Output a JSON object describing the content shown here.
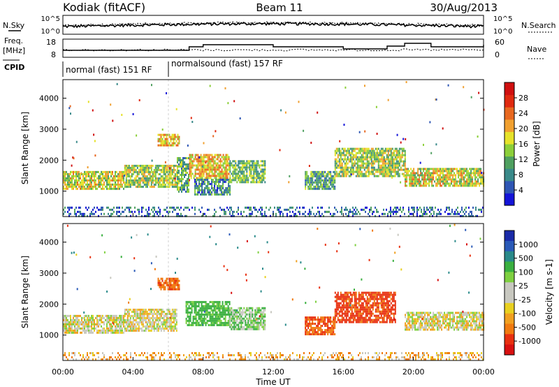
{
  "header": {
    "station": "Kodiak (fitACF)",
    "beam": "Beam 11",
    "date": "30/Aug/2013"
  },
  "status_panels": {
    "nsky_label": "N.Sky",
    "nsearch_label": "N.Search",
    "freq_label_1": "Freq.",
    "freq_label_2": "[MHz]",
    "nave_label": "Nave",
    "cpid_label": "CPID",
    "nsky_ticks": [
      "10^5",
      "10^0"
    ],
    "nsearch_ticks": [
      "10^5",
      "10^0"
    ],
    "freq_ticks": [
      "18",
      "8"
    ],
    "nave_ticks": [
      "60",
      "0"
    ],
    "cpid_segments": [
      {
        "label": "normal (fast) 151 RF",
        "start_hour": 0,
        "end_hour": 6.0
      },
      {
        "label": "normalsound (fast) 157 RF",
        "start_hour": 6.0,
        "end_hour": 24
      }
    ]
  },
  "axes": {
    "xlabel": "Time UT",
    "ylabel": "Slant Range [km]",
    "xticks": [
      "00:00",
      "04:00",
      "08:00",
      "12:00",
      "16:00",
      "20:00",
      "00:00"
    ],
    "yticks": [
      "1000",
      "2000",
      "3000",
      "4000"
    ]
  },
  "colorbars": {
    "power": {
      "label": "Power [dB]",
      "ticks": [
        "4",
        "8",
        "12",
        "16",
        "20",
        "24",
        "28"
      ],
      "colors": [
        "#1414d8",
        "#2e56b4",
        "#3a8a8a",
        "#4fa060",
        "#8ccf3a",
        "#e6e22a",
        "#f0a030",
        "#e86820",
        "#e02a10",
        "#d01010"
      ]
    },
    "velocity": {
      "label": "Velocity [m s-1]",
      "ticks": [
        "1000",
        "500",
        "100",
        "25",
        "-25",
        "-100",
        "-500",
        "-1000"
      ],
      "colors": [
        "#1a2aa8",
        "#2a5ab8",
        "#2a8a8a",
        "#3ab040",
        "#7ed040",
        "#c8c8c0",
        "#c8c8c0",
        "#e8d020",
        "#f0a020",
        "#f07a10",
        "#e83010",
        "#d81010"
      ]
    }
  },
  "chart_data": [
    {
      "type": "heatmap",
      "panel": "Power",
      "x_unit": "hour UT",
      "y_unit": "km",
      "xlim": [
        0,
        24
      ],
      "ylim": [
        180,
        4600
      ],
      "value_label": "Power [dB]",
      "value_range": [
        0,
        30
      ],
      "echo_regions": [
        {
          "x": [
            0.0,
            3.5
          ],
          "y": [
            1050,
            1650
          ],
          "power_db": 16
        },
        {
          "x": [
            3.5,
            6.5
          ],
          "y": [
            1150,
            1850
          ],
          "power_db": 14
        },
        {
          "x": [
            5.4,
            6.6
          ],
          "y": [
            2450,
            2850
          ],
          "power_db": 18
        },
        {
          "x": [
            6.5,
            7.2
          ],
          "y": [
            1000,
            2100
          ],
          "power_db": 10
        },
        {
          "x": [
            7.2,
            9.5
          ],
          "y": [
            1400,
            2200
          ],
          "power_db": 18
        },
        {
          "x": [
            7.5,
            9.5
          ],
          "y": [
            900,
            1400
          ],
          "power_db": 8
        },
        {
          "x": [
            9.5,
            11.5
          ],
          "y": [
            1300,
            2000
          ],
          "power_db": 12
        },
        {
          "x": [
            13.8,
            15.5
          ],
          "y": [
            1100,
            1650
          ],
          "power_db": 10
        },
        {
          "x": [
            15.5,
            19.5
          ],
          "y": [
            1500,
            2400
          ],
          "power_db": 14
        },
        {
          "x": [
            19.5,
            24.0
          ],
          "y": [
            1150,
            1750
          ],
          "power_db": 16
        },
        {
          "x": [
            0.0,
            24.0
          ],
          "y": [
            200,
            500
          ],
          "power_db": 6
        }
      ]
    },
    {
      "type": "heatmap",
      "panel": "Velocity",
      "x_unit": "hour UT",
      "y_unit": "km",
      "xlim": [
        0,
        24
      ],
      "ylim": [
        180,
        4600
      ],
      "value_label": "Velocity [m s-1]",
      "value_range": [
        -1000,
        1000
      ],
      "echo_regions": [
        {
          "x": [
            0.0,
            3.5
          ],
          "y": [
            1050,
            1650
          ],
          "velocity": 0
        },
        {
          "x": [
            3.5,
            6.5
          ],
          "y": [
            1150,
            1850
          ],
          "velocity": 0
        },
        {
          "x": [
            5.4,
            6.6
          ],
          "y": [
            2450,
            2850
          ],
          "velocity": -200
        },
        {
          "x": [
            7.0,
            9.5
          ],
          "y": [
            1300,
            2100
          ],
          "velocity": 150
        },
        {
          "x": [
            9.5,
            11.5
          ],
          "y": [
            1200,
            1900
          ],
          "velocity": 80
        },
        {
          "x": [
            13.8,
            15.5
          ],
          "y": [
            1000,
            1600
          ],
          "velocity": -250
        },
        {
          "x": [
            15.5,
            19.0
          ],
          "y": [
            1400,
            2400
          ],
          "velocity": -300
        },
        {
          "x": [
            19.5,
            24.0
          ],
          "y": [
            1150,
            1750
          ],
          "velocity": 0
        },
        {
          "x": [
            0.0,
            24.0
          ],
          "y": [
            200,
            450
          ],
          "velocity": -60
        }
      ]
    }
  ]
}
